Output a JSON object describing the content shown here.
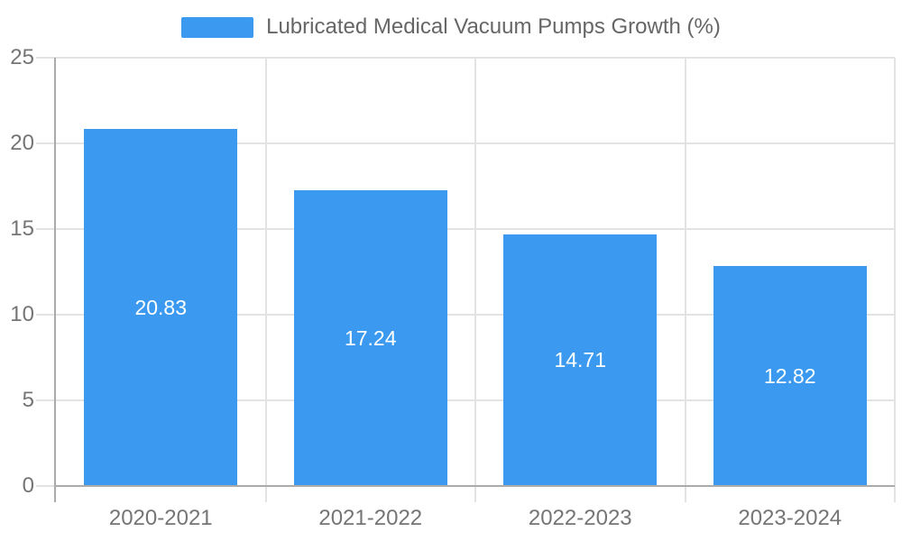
{
  "chart_data": {
    "type": "bar",
    "title": "Lubricated Medical Vacuum Pumps Growth (%)",
    "legend": {
      "label": "Lubricated Medical Vacuum Pumps Growth (%)",
      "position": "top-center"
    },
    "categories": [
      "2020-2021",
      "2021-2022",
      "2022-2023",
      "2023-2024"
    ],
    "series": [
      {
        "name": "Lubricated Medical Vacuum Pumps Growth (%)",
        "values": [
          20.83,
          17.24,
          14.71,
          12.82
        ]
      }
    ],
    "value_labels": [
      "20.83",
      "17.24",
      "14.71",
      "12.82"
    ],
    "xlabel": "",
    "ylabel": "",
    "ylim": [
      0,
      25
    ],
    "ytick_step": 5,
    "ytick_labels": [
      "0",
      "5",
      "10",
      "15",
      "20",
      "25"
    ],
    "grid": true,
    "colors": {
      "bar": "#3B9AF0",
      "axis": "#ababab",
      "gridline": "#e3e3e3",
      "tick_label": "#757575",
      "legend_text": "#666666",
      "value_label": "#ffffff",
      "background": "#ffffff"
    }
  }
}
